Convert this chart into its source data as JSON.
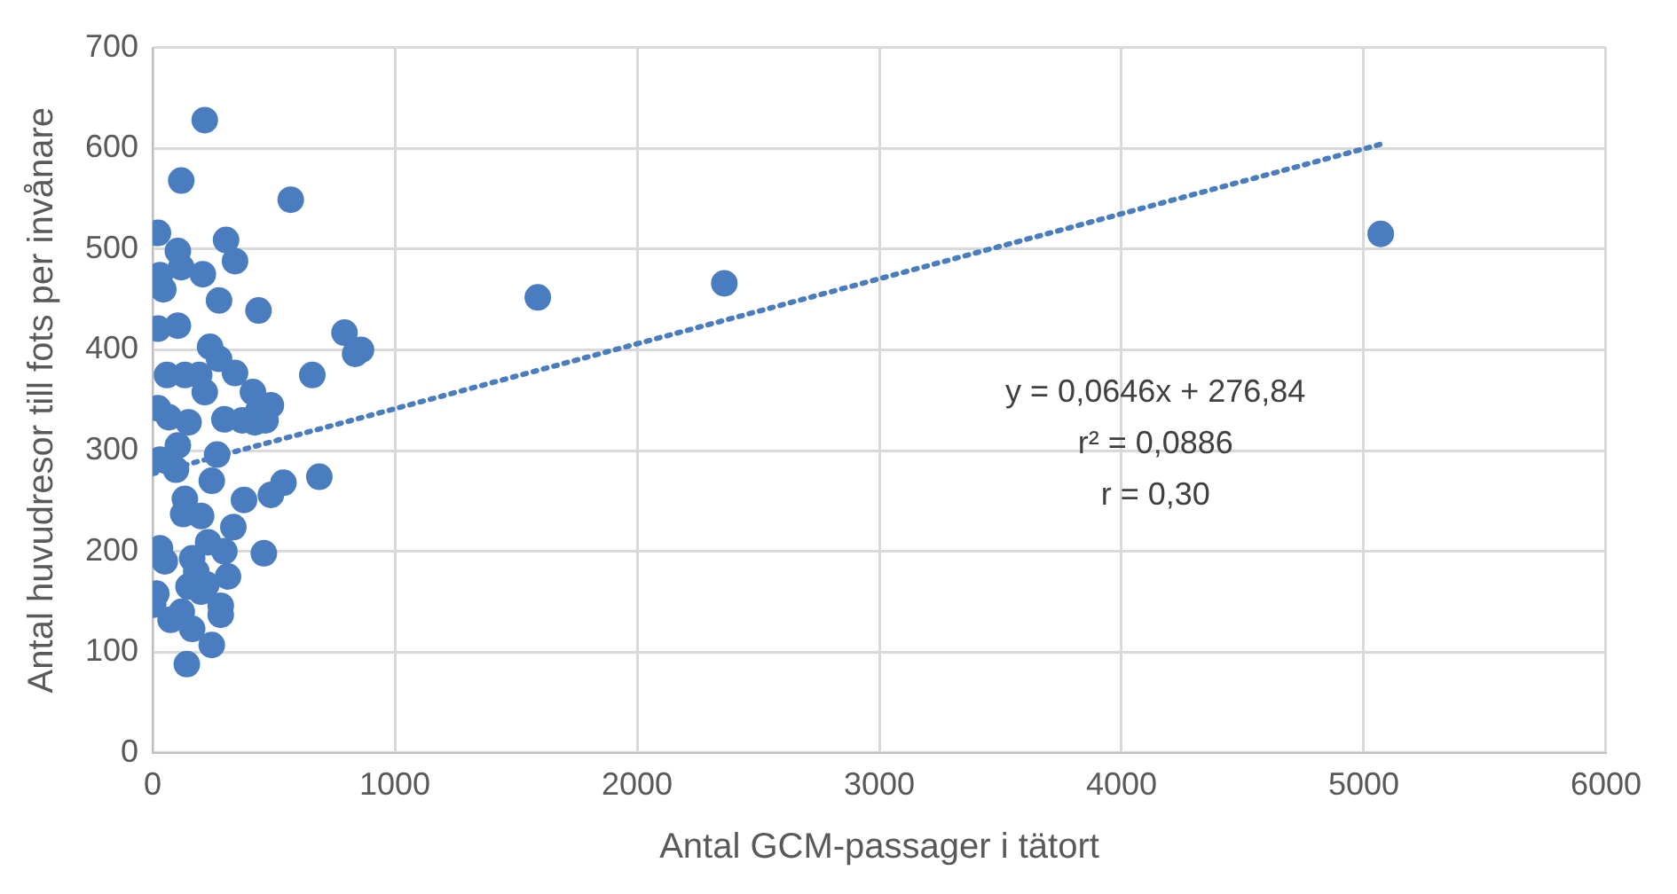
{
  "chart_data": {
    "type": "scatter",
    "xlabel": "Antal GCM-passager i tätort",
    "ylabel": "Antal huvudresor till fots per invånare",
    "xlim": [
      0,
      6000
    ],
    "xticks": [
      0,
      1000,
      2000,
      3000,
      4000,
      5000,
      6000
    ],
    "ylim": [
      0,
      700
    ],
    "yticks": [
      0,
      100,
      200,
      300,
      400,
      500,
      600,
      700
    ],
    "grid": true,
    "marker": "circle",
    "annotations": [
      "y = 0,0646x + 276,84",
      "r² = 0,0886",
      "r = 0,30"
    ],
    "series": [
      {
        "color": "#4a7dbf",
        "x": [
          215,
          118,
          570,
          22,
          104,
          303,
          118,
          207,
          340,
          30,
          44,
          274,
          437,
          22,
          104,
          792,
          836,
          860,
          237,
          274,
          340,
          659,
          59,
          133,
          192,
          215,
          22,
          414,
          488,
          437,
          67,
          148,
          296,
          370,
          422,
          466,
          30,
          104,
          266,
          96,
          244,
          688,
          540,
          488,
          377,
          133,
          126,
          200,
          333,
          30,
          229,
          296,
          459,
          163,
          311,
          15,
          2,
          148,
          222,
          281,
          281,
          74,
          163,
          244,
          141,
          180,
          50,
          120,
          200,
          1590,
          2360,
          5070
        ],
        "values": [
          628,
          568,
          549,
          516,
          498,
          509,
          482,
          475,
          488,
          474,
          460,
          449,
          439,
          421,
          424,
          417,
          396,
          400,
          403,
          391,
          377,
          375,
          375,
          375,
          375,
          358,
          342,
          358,
          345,
          340,
          333,
          328,
          331,
          330,
          328,
          330,
          291,
          305,
          296,
          281,
          270,
          274,
          268,
          256,
          251,
          252,
          237,
          235,
          224,
          203,
          209,
          200,
          198,
          193,
          175,
          158,
          147,
          165,
          167,
          146,
          137,
          132,
          123,
          107,
          88,
          180,
          190,
          140,
          160,
          452,
          466,
          515
        ]
      },
      {
        "type": "line",
        "color": "#4a7dbf",
        "line_style": "dotted",
        "marker": "none",
        "x": [
          0,
          5070
        ],
        "values": [
          277,
          604
        ]
      }
    ]
  }
}
